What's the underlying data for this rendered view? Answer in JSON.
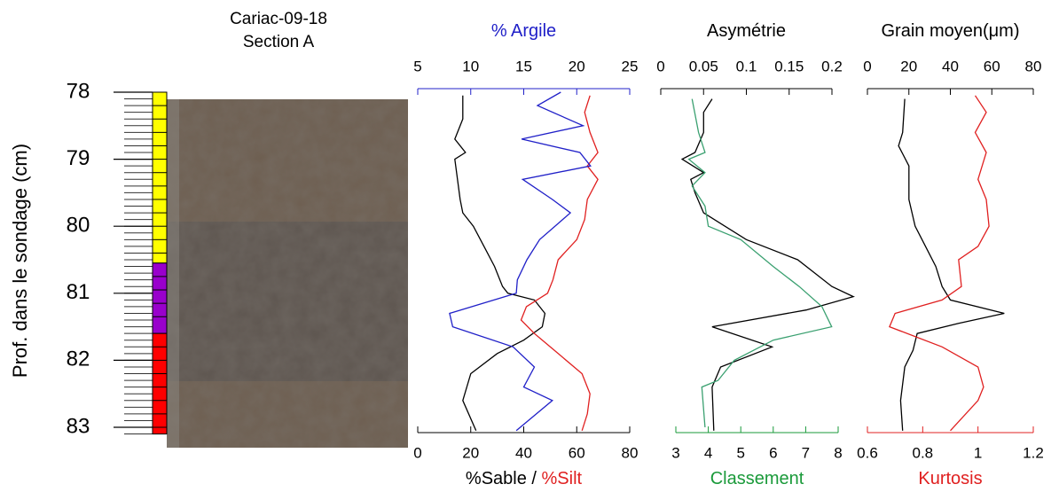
{
  "chart_data": [
    {
      "type": "core",
      "title": [
        "Cariac-09-18",
        "Section A"
      ],
      "ylabel": "Prof. dans le sondage (cm)",
      "ylim": [
        78,
        83.1
      ],
      "yticks": [
        78,
        79,
        80,
        81,
        82,
        83
      ],
      "minor_step": 0.1,
      "units": [
        {
          "color": "#ffff00",
          "from": 78,
          "to": 80.55
        },
        {
          "color": "#9900cc",
          "from": 80.55,
          "to": 81.6
        },
        {
          "color": "#ff0000",
          "from": 81.6,
          "to": 83.1
        }
      ]
    },
    {
      "type": "line",
      "x2label": [
        {
          "text": "% Argile",
          "color": "#2020c8"
        }
      ],
      "x2lim": [
        5,
        25
      ],
      "x2ticks": [
        5,
        10,
        15,
        20,
        25
      ],
      "x2color": "#2020c8",
      "xlabel": [
        {
          "text": "%Sable / ",
          "color": "#000000"
        },
        {
          "text": "%Silt",
          "color": "#e02020"
        }
      ],
      "xlim": [
        0,
        80
      ],
      "xticks": [
        0,
        20,
        40,
        60,
        80
      ],
      "xcolor": "#000000",
      "series": [
        {
          "color": "#000000",
          "axis": "x",
          "y": [
            78.05,
            78.4,
            78.7,
            78.9,
            79.0,
            79.3,
            79.6,
            79.8,
            80.0,
            80.3,
            80.6,
            80.9,
            81.0,
            81.1,
            81.3,
            81.5,
            81.7,
            81.9,
            82.2,
            82.6,
            83.05
          ],
          "values": [
            17,
            17,
            14,
            18,
            14,
            15,
            16,
            17,
            21,
            25,
            29,
            32,
            34,
            44,
            48,
            47,
            40,
            30,
            20,
            17,
            22
          ]
        },
        {
          "color": "#e02020",
          "axis": "x",
          "y": [
            78.05,
            78.3,
            78.6,
            78.9,
            79.1,
            79.3,
            79.6,
            79.9,
            80.2,
            80.5,
            80.8,
            81.0,
            81.2,
            81.4,
            81.6,
            81.9,
            82.2,
            82.5,
            82.8,
            83.05
          ],
          "values": [
            65,
            63,
            65,
            68,
            64,
            68,
            64,
            63,
            60,
            53,
            51,
            49,
            41,
            39,
            44,
            53,
            62,
            65,
            64,
            62
          ]
        },
        {
          "color": "#2020c8",
          "axis": "x2",
          "y": [
            78.0,
            78.2,
            78.5,
            78.7,
            78.9,
            79.1,
            79.3,
            79.6,
            79.8,
            80.2,
            80.5,
            80.8,
            81.0,
            81.3,
            81.5,
            81.8,
            82.1,
            82.4,
            82.6,
            83.05
          ],
          "values": [
            18.5,
            16.3,
            20.6,
            14.8,
            20.3,
            21.3,
            14.9,
            17.7,
            19.4,
            16.5,
            15.3,
            14.4,
            14.3,
            8.0,
            8.3,
            14.0,
            16.0,
            15.0,
            17.7,
            14.3
          ]
        }
      ]
    },
    {
      "type": "line",
      "x2label": [
        {
          "text": "Asymétrie",
          "color": "#000000"
        }
      ],
      "x2lim": [
        0,
        0.2
      ],
      "x2ticks": [
        0,
        0.05,
        0.1,
        0.15,
        0.2
      ],
      "x2color": "#000000",
      "xlabel": [
        {
          "text": "Classement",
          "color": "#1a9a3a"
        }
      ],
      "xlim": [
        3,
        8
      ],
      "xticks": [
        3,
        4,
        5,
        6,
        7,
        8
      ],
      "xcolor": "#1a9a3a",
      "series": [
        {
          "color": "#000000",
          "axis": "x2",
          "y": [
            78.1,
            78.3,
            78.6,
            78.9,
            79.0,
            79.2,
            79.3,
            79.5,
            79.8,
            80.2,
            80.5,
            80.9,
            81.05,
            81.25,
            81.5,
            81.8,
            82.1,
            82.4,
            83.05
          ],
          "values": [
            0.06,
            0.05,
            0.05,
            0.04,
            0.025,
            0.05,
            0.035,
            0.04,
            0.05,
            0.1,
            0.16,
            0.2,
            0.225,
            0.17,
            0.06,
            0.13,
            0.07,
            0.06,
            0.062
          ]
        },
        {
          "color": "#3aa070",
          "axis": "x",
          "y": [
            78.1,
            78.6,
            78.9,
            79.0,
            79.2,
            79.4,
            79.7,
            80.0,
            80.2,
            80.6,
            80.9,
            81.2,
            81.5,
            81.7,
            82.0,
            82.3,
            82.4,
            83.0
          ],
          "values": [
            3.5,
            3.7,
            3.9,
            3.4,
            3.9,
            3.5,
            3.9,
            4.0,
            5.0,
            6.0,
            6.8,
            7.5,
            7.8,
            6.0,
            4.8,
            4.3,
            3.8,
            3.9
          ]
        }
      ]
    },
    {
      "type": "line",
      "x2label": [
        {
          "text": "Grain moyen(μm)",
          "color": "#000000"
        }
      ],
      "x2lim": [
        0,
        80
      ],
      "x2ticks": [
        0,
        20,
        40,
        60,
        80
      ],
      "x2color": "#000000",
      "xlabel": [
        {
          "text": "Kurtosis",
          "color": "#e02020"
        }
      ],
      "xlim": [
        0.6,
        1.2
      ],
      "xticks": [
        0.6,
        0.8,
        1,
        1.2
      ],
      "xcolor": "#e02020",
      "series": [
        {
          "color": "#000000",
          "axis": "x2",
          "y": [
            78.1,
            78.6,
            78.8,
            79.1,
            79.6,
            80.0,
            80.3,
            80.6,
            80.9,
            81.1,
            81.3,
            81.45,
            81.6,
            81.85,
            82.1,
            82.6,
            83.05
          ],
          "values": [
            18,
            17,
            15,
            20,
            20,
            23,
            28,
            33,
            36,
            40,
            66,
            44,
            24,
            22,
            18,
            16,
            17
          ]
        },
        {
          "color": "#e02020",
          "axis": "x",
          "y": [
            78.05,
            78.3,
            78.6,
            78.9,
            79.3,
            79.6,
            80.0,
            80.3,
            80.5,
            80.9,
            81.1,
            81.3,
            81.5,
            81.8,
            82.1,
            82.4,
            82.6,
            83.05
          ],
          "values": [
            0.99,
            1.03,
            0.99,
            1.03,
            1.0,
            1.03,
            1.04,
            1.0,
            0.93,
            0.94,
            0.87,
            0.7,
            0.68,
            0.87,
            1.0,
            1.02,
            1.0,
            0.9
          ]
        }
      ]
    }
  ]
}
